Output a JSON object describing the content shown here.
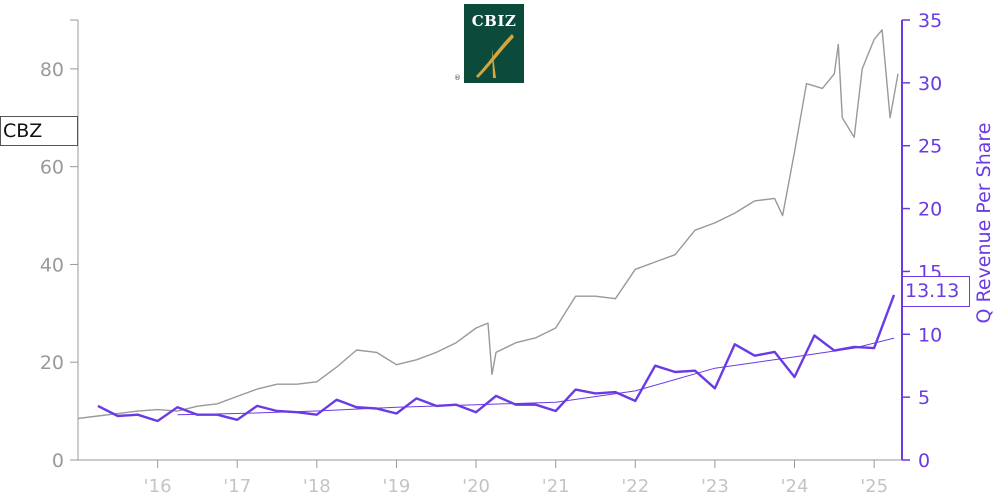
{
  "ticker": "CBZ",
  "last_value_label": "13.13",
  "logo": {
    "text": "CBIZ",
    "mark": "®"
  },
  "colors": {
    "price": "#999999",
    "revenue": "#6a3be4",
    "trend": "#6a3be4",
    "axis_left": "#999999"
  },
  "chart_data": {
    "type": "line",
    "xlabel": "",
    "x_tick_labels": [
      "'16",
      "'17",
      "'18",
      "'19",
      "'20",
      "'21",
      "'22",
      "'23",
      "'24",
      "'25"
    ],
    "x_range": [
      2015.0,
      2025.35
    ],
    "left_axis": {
      "label": "",
      "ylim": [
        0,
        90
      ],
      "ticks": [
        0,
        20,
        40,
        60,
        80
      ]
    },
    "right_axis": {
      "label": "Q Revenue Per Share",
      "ylim": [
        0,
        35
      ],
      "ticks": [
        0,
        5,
        10,
        15,
        20,
        25,
        30,
        35
      ]
    },
    "grid": false,
    "series": [
      {
        "name": "CBZ",
        "axis": "left",
        "style": "price",
        "points": [
          [
            2015.0,
            8.5
          ],
          [
            2015.25,
            9.0
          ],
          [
            2015.5,
            9.5
          ],
          [
            2015.75,
            10.0
          ],
          [
            2016.0,
            10.3
          ],
          [
            2016.25,
            10.0
          ],
          [
            2016.5,
            11.0
          ],
          [
            2016.75,
            11.5
          ],
          [
            2017.0,
            13.0
          ],
          [
            2017.25,
            14.5
          ],
          [
            2017.5,
            15.5
          ],
          [
            2017.75,
            15.5
          ],
          [
            2018.0,
            16.0
          ],
          [
            2018.25,
            19.0
          ],
          [
            2018.5,
            22.5
          ],
          [
            2018.75,
            22.0
          ],
          [
            2019.0,
            19.5
          ],
          [
            2019.25,
            20.5
          ],
          [
            2019.5,
            22.0
          ],
          [
            2019.75,
            24.0
          ],
          [
            2020.0,
            27.0
          ],
          [
            2020.15,
            28.0
          ],
          [
            2020.2,
            17.5
          ],
          [
            2020.25,
            22.0
          ],
          [
            2020.5,
            24.0
          ],
          [
            2020.75,
            25.0
          ],
          [
            2021.0,
            27.0
          ],
          [
            2021.25,
            33.5
          ],
          [
            2021.5,
            33.5
          ],
          [
            2021.75,
            33.0
          ],
          [
            2022.0,
            39.0
          ],
          [
            2022.25,
            40.5
          ],
          [
            2022.5,
            42.0
          ],
          [
            2022.75,
            47.0
          ],
          [
            2023.0,
            48.5
          ],
          [
            2023.25,
            50.5
          ],
          [
            2023.5,
            53.0
          ],
          [
            2023.75,
            53.5
          ],
          [
            2023.85,
            50.0
          ],
          [
            2024.0,
            63.0
          ],
          [
            2024.15,
            77.0
          ],
          [
            2024.35,
            76.0
          ],
          [
            2024.5,
            79.0
          ],
          [
            2024.55,
            85.0
          ],
          [
            2024.6,
            70.0
          ],
          [
            2024.75,
            66.0
          ],
          [
            2024.85,
            80.0
          ],
          [
            2025.0,
            86.0
          ],
          [
            2025.1,
            88.0
          ],
          [
            2025.2,
            70.0
          ],
          [
            2025.3,
            79.0
          ]
        ]
      },
      {
        "name": "Q Revenue Per Share",
        "axis": "right",
        "style": "revenue",
        "points": [
          [
            2015.25,
            4.3
          ],
          [
            2015.5,
            3.5
          ],
          [
            2015.75,
            3.6
          ],
          [
            2016.0,
            3.1
          ],
          [
            2016.25,
            4.2
          ],
          [
            2016.5,
            3.6
          ],
          [
            2016.75,
            3.6
          ],
          [
            2017.0,
            3.2
          ],
          [
            2017.25,
            4.3
          ],
          [
            2017.5,
            3.9
          ],
          [
            2017.75,
            3.8
          ],
          [
            2018.0,
            3.6
          ],
          [
            2018.25,
            4.8
          ],
          [
            2018.5,
            4.2
          ],
          [
            2018.75,
            4.1
          ],
          [
            2019.0,
            3.7
          ],
          [
            2019.25,
            4.9
          ],
          [
            2019.5,
            4.3
          ],
          [
            2019.75,
            4.4
          ],
          [
            2020.0,
            3.8
          ],
          [
            2020.25,
            5.1
          ],
          [
            2020.5,
            4.4
          ],
          [
            2020.75,
            4.4
          ],
          [
            2021.0,
            3.9
          ],
          [
            2021.25,
            5.6
          ],
          [
            2021.5,
            5.3
          ],
          [
            2021.75,
            5.4
          ],
          [
            2022.0,
            4.7
          ],
          [
            2022.25,
            7.5
          ],
          [
            2022.5,
            7.0
          ],
          [
            2022.75,
            7.1
          ],
          [
            2023.0,
            5.7
          ],
          [
            2023.25,
            9.2
          ],
          [
            2023.5,
            8.3
          ],
          [
            2023.75,
            8.6
          ],
          [
            2024.0,
            6.6
          ],
          [
            2024.25,
            9.9
          ],
          [
            2024.5,
            8.7
          ],
          [
            2024.75,
            9.0
          ],
          [
            2025.0,
            8.9
          ],
          [
            2025.25,
            13.13
          ]
        ]
      },
      {
        "name": "trend",
        "axis": "right",
        "style": "trend",
        "points": [
          [
            2016.25,
            3.6
          ],
          [
            2017.0,
            3.7
          ],
          [
            2018.0,
            3.9
          ],
          [
            2019.0,
            4.2
          ],
          [
            2020.0,
            4.4
          ],
          [
            2021.0,
            4.6
          ],
          [
            2022.0,
            5.5
          ],
          [
            2023.0,
            7.3
          ],
          [
            2024.0,
            8.2
          ],
          [
            2024.75,
            8.9
          ],
          [
            2025.25,
            9.7
          ]
        ]
      }
    ]
  }
}
